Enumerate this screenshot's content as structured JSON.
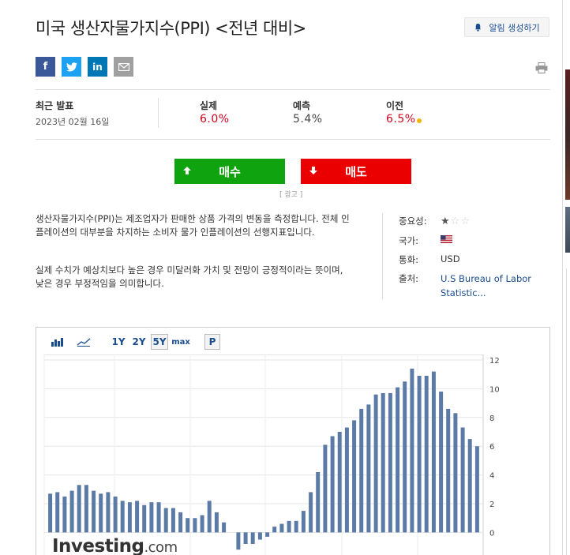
{
  "header": {
    "title": "미국 생산자물가지수(PPI) <전년 대비>",
    "alert_button": "알림 생성하기"
  },
  "social": {
    "facebook": "f",
    "twitter": "t",
    "linkedin": "in",
    "email": "email-icon",
    "print": "print-icon"
  },
  "release": {
    "latest_label": "최근 발표",
    "latest_date": "2023년 02월 16일",
    "actual_label": "실제",
    "actual_value": "6.0%",
    "forecast_label": "예측",
    "forecast_value": "5.4%",
    "previous_label": "이전",
    "previous_value": "6.5%"
  },
  "trade": {
    "buy_label": "매수",
    "sell_label": "매도",
    "ad_label": "광고",
    "buy_color": "#0fa30f",
    "sell_color": "#ea0000"
  },
  "description": {
    "para1": "생산자물가지수(PPI)는 제조업자가 판매한 상품 가격의 변동을 측정합니다. 전체 인플레이션의 대부분을 차지하는 소비자 물가 인플레이션의 선행지표입니다.",
    "para2": "실제 수치가 예상치보다 높은 경우 미달러화 가치 및 전망이 긍정적이라는 뜻이며, 낮은 경우 부정적임을 의미합니다."
  },
  "meta": {
    "importance_label": "중요성:",
    "importance_stars": 1,
    "country_label": "국가:",
    "currency_label": "통화:",
    "currency_value": "USD",
    "source_label": "출처:",
    "source_value": "U.S Bureau of Labor Statistic..."
  },
  "chart_toolbar": {
    "bar_icon": "bar-chart-icon",
    "line_icon": "line-chart-icon",
    "ranges": [
      "1Y",
      "2Y",
      "5Y",
      "max"
    ],
    "selected_range": "5Y",
    "p_label": "P"
  },
  "logo": {
    "text": "Investing",
    "suffix": ".com"
  },
  "chart_data": {
    "type": "bar",
    "yticks": [
      0,
      2,
      4,
      6,
      8,
      10,
      12
    ],
    "ylim": [
      -1.5,
      12
    ],
    "values": [
      2.7,
      2.8,
      2.5,
      2.9,
      3.3,
      3.3,
      2.9,
      2.7,
      2.8,
      2.5,
      2.2,
      2.1,
      2.2,
      1.9,
      2.1,
      2.1,
      1.7,
      1.7,
      1.4,
      1.0,
      1.0,
      1.2,
      2.2,
      1.4,
      0.7,
      0.0,
      -1.2,
      -0.8,
      -0.8,
      -0.5,
      -0.3,
      0.4,
      0.6,
      0.8,
      0.8,
      1.5,
      2.8,
      4.2,
      6.1,
      6.7,
      7.0,
      7.3,
      7.8,
      8.6,
      8.9,
      9.6,
      9.7,
      9.7,
      10.1,
      10.5,
      11.4,
      10.9,
      10.9,
      11.2,
      9.8,
      8.6,
      8.3,
      7.3,
      6.5,
      6.0
    ]
  }
}
